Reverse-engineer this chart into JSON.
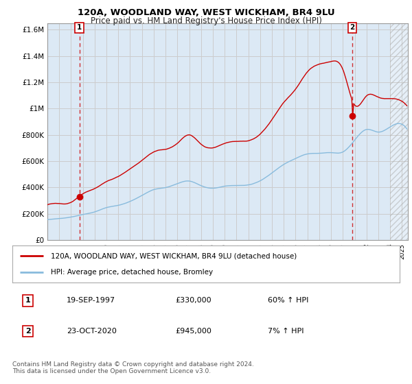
{
  "title": "120A, WOODLAND WAY, WEST WICKHAM, BR4 9LU",
  "subtitle": "Price paid vs. HM Land Registry's House Price Index (HPI)",
  "ylabel_ticks": [
    "£0",
    "£200K",
    "£400K",
    "£600K",
    "£800K",
    "£1M",
    "£1.2M",
    "£1.4M",
    "£1.6M"
  ],
  "ylabel_values": [
    0,
    200000,
    400000,
    600000,
    800000,
    1000000,
    1200000,
    1400000,
    1600000
  ],
  "ylim": [
    0,
    1650000
  ],
  "xlim_start": 1995.0,
  "xlim_end": 2025.5,
  "sale1_year": 1997,
  "sale1_month": 9,
  "sale1_price": 330000,
  "sale1_label": "1",
  "sale2_year": 2020,
  "sale2_month": 10,
  "sale2_price": 945000,
  "sale2_label": "2",
  "hatch_start": 2024.0,
  "legend_line1": "120A, WOODLAND WAY, WEST WICKHAM, BR4 9LU (detached house)",
  "legend_line2": "HPI: Average price, detached house, Bromley",
  "note1_label": "1",
  "note1_date": "19-SEP-1997",
  "note1_price": "£330,000",
  "note1_hpi": "60% ↑ HPI",
  "note2_label": "2",
  "note2_date": "23-OCT-2020",
  "note2_price": "£945,000",
  "note2_hpi": "7% ↑ HPI",
  "footer": "Contains HM Land Registry data © Crown copyright and database right 2024.\nThis data is licensed under the Open Government Licence v3.0.",
  "line1_color": "#cc0000",
  "line2_color": "#88bbdd",
  "grid_color": "#cccccc",
  "bg_color": "#ffffff",
  "plot_bg_color": "#dce9f5"
}
